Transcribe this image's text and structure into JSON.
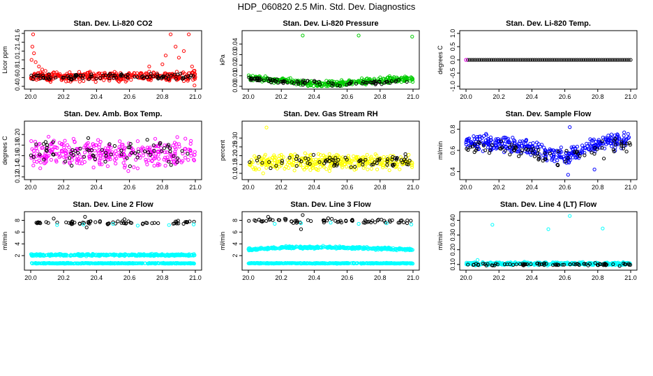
{
  "title": "HDP_060820  2.5 Min. Std. Dev. Diagnostics",
  "chart_data": [
    {
      "type": "scatter",
      "title": "Stan. Dev. Li-820 CO2",
      "ylabel": "Licor ppm",
      "xlim": [
        20.0,
        21.0
      ],
      "ylim": [
        0.4,
        1.6
      ],
      "xticks": [
        20.0,
        20.2,
        20.4,
        20.6,
        20.8,
        21.0
      ],
      "xtick_labels": [
        "20.0",
        "20.2",
        "20.4",
        "20.6",
        "20.8",
        "21.0"
      ],
      "yticks": [
        0.4,
        0.6,
        0.8,
        1.0,
        1.2,
        1.4,
        1.6
      ],
      "ytick_labels": [
        "0.4",
        "0.6",
        "0.8",
        "1.0",
        "1.2",
        "1.4",
        "1.6"
      ],
      "series": [
        {
          "color": "#ff0000",
          "gen": {
            "n": 380,
            "base": 0.62,
            "noise": 0.08
          },
          "x": [
            20.005,
            20.01,
            20.015,
            20.02,
            20.03,
            20.05,
            20.07,
            20.09,
            20.82,
            20.85,
            20.88,
            20.9,
            20.93,
            20.96,
            20.98,
            20.995,
            20.8,
            20.72
          ],
          "y": [
            1.0,
            1.3,
            1.58,
            1.15,
            0.95,
            0.85,
            0.78,
            0.75,
            1.1,
            1.58,
            1.3,
            1.05,
            1.2,
            1.58,
            0.85,
            0.42,
            0.9,
            0.85
          ]
        },
        {
          "color": "#000000",
          "gen": {
            "n": 90,
            "base": 0.62,
            "noise": 0.05
          }
        }
      ]
    },
    {
      "type": "scatter",
      "title": "Stan. Dev. Li-820 Pressure",
      "ylabel": "kPa",
      "xlim": [
        20.0,
        21.0
      ],
      "ylim": [
        0.0,
        0.05
      ],
      "xticks": [
        20.0,
        20.2,
        20.4,
        20.6,
        20.8,
        21.0
      ],
      "xtick_labels": [
        "20.0",
        "20.2",
        "20.4",
        "20.6",
        "20.8",
        "21.0"
      ],
      "yticks": [
        0.0,
        0.01,
        0.02,
        0.03,
        0.04
      ],
      "ytick_labels": [
        "0.00",
        "0.01",
        "0.02",
        "0.03",
        "0.04"
      ],
      "series": [
        {
          "color": "#00cc00",
          "gen": {
            "n": 380,
            "base": 0.006,
            "noise": 0.002,
            "trend": [
              [
                20.0,
                0.008
              ],
              [
                20.2,
                0.006
              ],
              [
                20.4,
                0.002
              ],
              [
                20.6,
                0.003
              ],
              [
                20.8,
                0.006
              ],
              [
                21.0,
                0.007
              ]
            ]
          },
          "x": [
            20.33,
            20.67,
            20.995
          ],
          "y": [
            0.048,
            0.048,
            0.047
          ]
        },
        {
          "color": "#000000",
          "gen": {
            "n": 90,
            "base": 0.005,
            "noise": 0.0015,
            "trend": [
              [
                20.0,
                0.007
              ],
              [
                20.3,
                0.004
              ],
              [
                20.5,
                0.002
              ],
              [
                20.7,
                0.003
              ],
              [
                21.0,
                0.006
              ]
            ]
          }
        }
      ]
    },
    {
      "type": "scatter",
      "title": "Stan. Dev. Li-820 Temp.",
      "ylabel": "degrees C",
      "xlim": [
        20.0,
        21.0
      ],
      "ylim": [
        -1.0,
        1.0
      ],
      "xticks": [
        20.0,
        20.2,
        20.4,
        20.6,
        20.8,
        21.0
      ],
      "xtick_labels": [
        "20.0",
        "20.2",
        "20.4",
        "20.6",
        "20.8",
        "21.0"
      ],
      "yticks": [
        -1.0,
        -0.5,
        0.0,
        0.5,
        1.0
      ],
      "ytick_labels": [
        "-1.0",
        "-0.5",
        "0.0",
        "0.5",
        "1.0"
      ],
      "series": [
        {
          "color": "#000000",
          "gen": {
            "n": 85,
            "base": 0.0,
            "noise": 0.0,
            "even": true
          }
        },
        {
          "color": "#ff00ff",
          "x": [
            20.0
          ],
          "y": [
            0.0
          ]
        }
      ]
    },
    {
      "type": "scatter",
      "title": "Stan. Dev. Amb. Box Temp.",
      "ylabel": "degrees C",
      "xlim": [
        20.0,
        21.0
      ],
      "ylim": [
        0.12,
        0.22
      ],
      "xticks": [
        20.0,
        20.2,
        20.4,
        20.6,
        20.8,
        21.0
      ],
      "xtick_labels": [
        "20.0",
        "20.2",
        "20.4",
        "20.6",
        "20.8",
        "21.0"
      ],
      "yticks": [
        0.12,
        0.14,
        0.16,
        0.18,
        0.2
      ],
      "ytick_labels": [
        "0.12",
        "0.14",
        "0.16",
        "0.18",
        "0.20"
      ],
      "series": [
        {
          "color": "#ff00ff",
          "gen": {
            "n": 330,
            "base": 0.165,
            "noise": 0.018
          }
        },
        {
          "color": "#000000",
          "gen": {
            "n": 70,
            "base": 0.165,
            "noise": 0.02
          }
        }
      ]
    },
    {
      "type": "scatter",
      "title": "Stan. Dev. Gas Stream RH",
      "ylabel": "percent",
      "xlim": [
        20.0,
        21.0
      ],
      "ylim": [
        0.08,
        0.38
      ],
      "xticks": [
        20.0,
        20.2,
        20.4,
        20.6,
        20.8,
        21.0
      ],
      "xtick_labels": [
        "20.0",
        "20.2",
        "20.4",
        "20.6",
        "20.8",
        "21.0"
      ],
      "yticks": [
        0.1,
        0.15,
        0.2,
        0.25,
        0.3
      ],
      "ytick_labels": [
        "0.10",
        "0.15",
        "0.20",
        "0.25",
        "0.30"
      ],
      "series": [
        {
          "color": "#ffff00",
          "gen": {
            "n": 380,
            "base": 0.165,
            "noise": 0.03
          },
          "x": [
            20.11,
            20.09
          ],
          "y": [
            0.36,
            0.1
          ]
        },
        {
          "color": "#000000",
          "gen": {
            "n": 75,
            "base": 0.17,
            "noise": 0.025
          }
        }
      ]
    },
    {
      "type": "scatter",
      "title": "Stan. Dev. Sample Flow",
      "ylabel": "ml/min",
      "xlim": [
        20.0,
        21.0
      ],
      "ylim": [
        0.35,
        0.85
      ],
      "xticks": [
        20.0,
        20.2,
        20.4,
        20.6,
        20.8,
        21.0
      ],
      "xtick_labels": [
        "20.0",
        "20.2",
        "20.4",
        "20.6",
        "20.8",
        "21.0"
      ],
      "yticks": [
        0.4,
        0.6,
        0.8
      ],
      "ytick_labels": [
        "0.4",
        "0.6",
        "0.8"
      ],
      "series": [
        {
          "color": "#0000ff",
          "gen": {
            "n": 380,
            "base": 0.62,
            "noise": 0.05,
            "trend": [
              [
                20.0,
                0.68
              ],
              [
                20.2,
                0.66
              ],
              [
                20.4,
                0.62
              ],
              [
                20.5,
                0.56
              ],
              [
                20.6,
                0.54
              ],
              [
                20.7,
                0.6
              ],
              [
                20.8,
                0.68
              ],
              [
                21.0,
                0.7
              ]
            ]
          },
          "x": [
            20.63,
            20.62,
            20.78
          ],
          "y": [
            0.82,
            0.37,
            0.42
          ]
        },
        {
          "color": "#000000",
          "gen": {
            "n": 80,
            "base": 0.6,
            "noise": 0.05,
            "trend": [
              [
                20.0,
                0.64
              ],
              [
                20.3,
                0.6
              ],
              [
                20.55,
                0.52
              ],
              [
                20.7,
                0.58
              ],
              [
                21.0,
                0.66
              ]
            ]
          }
        }
      ]
    },
    {
      "type": "scatter",
      "title": "Stan. Dev. Line 2 Flow",
      "ylabel": "ml/min",
      "xlim": [
        20.0,
        21.0
      ],
      "ylim": [
        0,
        9
      ],
      "xticks": [
        20.0,
        20.2,
        20.4,
        20.6,
        20.8,
        21.0
      ],
      "xtick_labels": [
        "20.0",
        "20.2",
        "20.4",
        "20.6",
        "20.8",
        "21.0"
      ],
      "yticks": [
        2,
        4,
        6,
        8
      ],
      "ytick_labels": [
        "2",
        "4",
        "6",
        "8"
      ],
      "series": [
        {
          "color": "#00ffff",
          "gen": {
            "n": 400,
            "base": 2.1,
            "noise": 0.12
          }
        },
        {
          "color": "#00ffff",
          "gen": {
            "n": 400,
            "base": 0.7,
            "noise": 0.05
          }
        },
        {
          "color": "#000000",
          "gen": {
            "n": 70,
            "base": 7.6,
            "noise": 0.2
          },
          "x": [
            20.33,
            20.34,
            20.14,
            20.57
          ],
          "y": [
            8.6,
            6.8,
            8.3,
            8.2
          ]
        },
        {
          "color": "#00ffff",
          "x": [
            20.16,
            20.32,
            20.5,
            20.65,
            20.84,
            20.99
          ],
          "y": [
            7.2,
            7.3,
            7.4,
            7.1,
            7.2,
            7.3
          ]
        }
      ]
    },
    {
      "type": "scatter",
      "title": "Stan. Dev. Line 3 Flow",
      "ylabel": "ml/min",
      "xlim": [
        20.0,
        21.0
      ],
      "ylim": [
        0,
        9
      ],
      "xticks": [
        20.0,
        20.2,
        20.4,
        20.6,
        20.8,
        21.0
      ],
      "xtick_labels": [
        "20.0",
        "20.2",
        "20.4",
        "20.6",
        "20.8",
        "21.0"
      ],
      "yticks": [
        2,
        4,
        6,
        8
      ],
      "ytick_labels": [
        "2",
        "4",
        "6",
        "8"
      ],
      "series": [
        {
          "color": "#00ffff",
          "gen": {
            "n": 400,
            "base": 3.2,
            "noise": 0.15,
            "trend": [
              [
                20.0,
                3.0
              ],
              [
                20.2,
                3.4
              ],
              [
                20.5,
                3.4
              ],
              [
                20.8,
                3.2
              ],
              [
                21.0,
                3.0
              ]
            ]
          }
        },
        {
          "color": "#00ffff",
          "gen": {
            "n": 400,
            "base": 0.7,
            "noise": 0.05
          }
        },
        {
          "color": "#000000",
          "gen": {
            "n": 70,
            "base": 7.9,
            "noise": 0.25
          },
          "x": [
            20.32,
            20.33,
            20.12
          ],
          "y": [
            6.5,
            8.9,
            8.6
          ]
        },
        {
          "color": "#00ffff",
          "x": [
            20.16,
            20.32,
            20.5,
            20.67,
            20.84,
            20.99
          ],
          "y": [
            7.4,
            7.5,
            7.6,
            7.4,
            7.5,
            7.3
          ]
        }
      ]
    },
    {
      "type": "scatter",
      "title": "Stan. Dev. Line 4 (LT) Flow",
      "ylabel": "ml/min",
      "xlim": [
        20.0,
        21.0
      ],
      "ylim": [
        0.08,
        0.44
      ],
      "xticks": [
        20.0,
        20.2,
        20.4,
        20.6,
        20.8,
        21.0
      ],
      "xtick_labels": [
        "20.0",
        "20.2",
        "20.4",
        "20.6",
        "20.8",
        "21.0"
      ],
      "yticks": [
        0.1,
        0.2,
        0.3,
        0.4
      ],
      "ytick_labels": [
        "0.10",
        "0.20",
        "0.30",
        "0.40"
      ],
      "series": [
        {
          "color": "#00ffff",
          "gen": {
            "n": 400,
            "base": 0.105,
            "noise": 0.007
          },
          "x": [
            20.16,
            20.5,
            20.63,
            20.83,
            20.07
          ],
          "y": [
            0.37,
            0.34,
            0.43,
            0.345,
            0.13
          ]
        },
        {
          "color": "#000000",
          "gen": {
            "n": 80,
            "base": 0.1,
            "noise": 0.006
          }
        }
      ]
    }
  ]
}
